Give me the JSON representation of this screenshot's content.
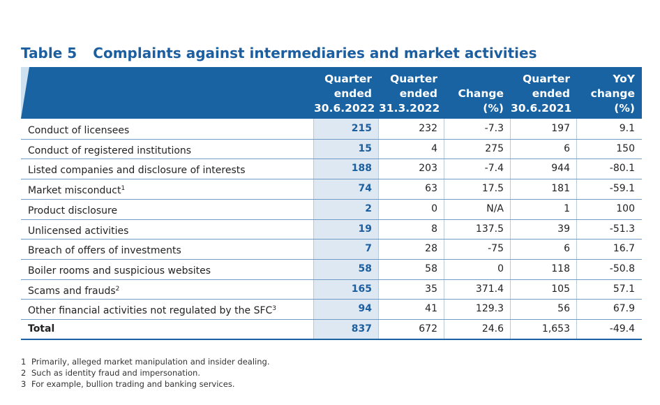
{
  "title": {
    "number": "Table 5",
    "text": "Complaints against intermediaries and market activities"
  },
  "columns": [
    {
      "lines": [
        "Quarter",
        "ended",
        "30.6.2022"
      ]
    },
    {
      "lines": [
        "Quarter",
        "ended",
        "31.3.2022"
      ]
    },
    {
      "lines": [
        "Change",
        "(%)"
      ]
    },
    {
      "lines": [
        "Quarter",
        "ended",
        "30.6.2021"
      ]
    },
    {
      "lines": [
        "YoY",
        "change",
        "(%)"
      ]
    }
  ],
  "rows": [
    {
      "label": "Conduct of licensees",
      "sup": "",
      "values": [
        "215",
        "232",
        "-7.3",
        "197",
        "9.1"
      ]
    },
    {
      "label": "Conduct of registered institutions",
      "sup": "",
      "values": [
        "15",
        "4",
        "275",
        "6",
        "150"
      ]
    },
    {
      "label": "Listed companies and disclosure of interests",
      "sup": "",
      "values": [
        "188",
        "203",
        "-7.4",
        "944",
        "-80.1"
      ]
    },
    {
      "label": "Market misconduct",
      "sup": "1",
      "values": [
        "74",
        "63",
        "17.5",
        "181",
        "-59.1"
      ]
    },
    {
      "label": "Product disclosure",
      "sup": "",
      "values": [
        "2",
        "0",
        "N/A",
        "1",
        "100"
      ]
    },
    {
      "label": "Unlicensed activities",
      "sup": "",
      "values": [
        "19",
        "8",
        "137.5",
        "39",
        "-51.3"
      ]
    },
    {
      "label": "Breach of offers of investments",
      "sup": "",
      "values": [
        "7",
        "28",
        "-75",
        "6",
        "16.7"
      ]
    },
    {
      "label": "Boiler rooms and suspicious websites",
      "sup": "",
      "values": [
        "58",
        "58",
        "0",
        "118",
        "-50.8"
      ]
    },
    {
      "label": "Scams and frauds",
      "sup": "2",
      "values": [
        "165",
        "35",
        "371.4",
        "105",
        "57.1"
      ]
    },
    {
      "label": "Other financial activities not regulated by the SFC",
      "sup": "3",
      "values": [
        "94",
        "41",
        "129.3",
        "56",
        "67.9"
      ]
    }
  ],
  "total": {
    "label": "Total",
    "values": [
      "837",
      "672",
      "24.6",
      "1,653",
      "-49.4"
    ]
  },
  "footnotes": [
    {
      "n": "1",
      "text": "Primarily, alleged market manipulation and insider dealing."
    },
    {
      "n": "2",
      "text": "Such as identity fraud and impersonation."
    },
    {
      "n": "3",
      "text": "For example, bullion trading and banking services."
    }
  ],
  "colors": {
    "header_bg": "#1a63a3",
    "highlight_col": "#dde8f3",
    "title": "#1c5fa0"
  }
}
